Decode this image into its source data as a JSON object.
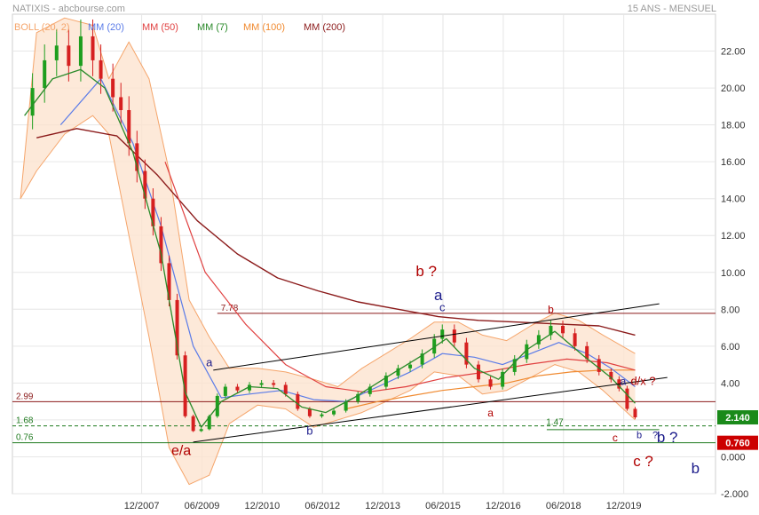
{
  "header": {
    "title": "NATIXIS - abcbourse.com",
    "period": "15 ANS - MENSUEL"
  },
  "legend": [
    {
      "label": "BOLL (20, 2)",
      "color": "#f5a56b"
    },
    {
      "label": "MM (20)",
      "color": "#5a7be8"
    },
    {
      "label": "MM (50)",
      "color": "#e04040"
    },
    {
      "label": "MM (7)",
      "color": "#2a8a2a"
    },
    {
      "label": "MM (100)",
      "color": "#f08a30"
    },
    {
      "label": "MM (200)",
      "color": "#8b1a1a"
    }
  ],
  "chart_data": {
    "type": "candlestick",
    "y_axis": {
      "min": -2,
      "max": 24,
      "ticks": [
        "22.00",
        "20.00",
        "18.00",
        "16.00",
        "14.00",
        "12.00",
        "10.00",
        "8.00",
        "6.00",
        "4.00",
        "2.00",
        "0.000",
        "-2.000"
      ]
    },
    "x_axis": {
      "ticks": [
        "12/2007",
        "06/2009",
        "12/2010",
        "06/2012",
        "12/2013",
        "06/2015",
        "12/2016",
        "06/2018",
        "12/2019"
      ]
    },
    "grid": true,
    "price_series": [
      [
        2004.9,
        18.5
      ],
      [
        2005.2,
        20.0
      ],
      [
        2005.5,
        21.5
      ],
      [
        2005.8,
        22.3
      ],
      [
        2006.1,
        21.2
      ],
      [
        2006.4,
        22.8
      ],
      [
        2006.7,
        21.5
      ],
      [
        2006.9,
        20.5
      ],
      [
        2007.2,
        19.5
      ],
      [
        2007.4,
        18.8
      ],
      [
        2007.6,
        17.0
      ],
      [
        2007.8,
        15.5
      ],
      [
        2008.0,
        14.0
      ],
      [
        2008.2,
        12.5
      ],
      [
        2008.4,
        10.5
      ],
      [
        2008.6,
        8.5
      ],
      [
        2008.8,
        5.5
      ],
      [
        2009.0,
        2.2
      ],
      [
        2009.2,
        1.4
      ],
      [
        2009.4,
        1.5
      ],
      [
        2009.6,
        2.2
      ],
      [
        2009.8,
        3.3
      ],
      [
        2010.0,
        3.8
      ],
      [
        2010.3,
        3.6
      ],
      [
        2010.6,
        3.9
      ],
      [
        2010.9,
        4.0
      ],
      [
        2011.2,
        3.9
      ],
      [
        2011.5,
        3.4
      ],
      [
        2011.8,
        2.6
      ],
      [
        2012.1,
        2.2
      ],
      [
        2012.4,
        2.3
      ],
      [
        2012.7,
        2.5
      ],
      [
        2013.0,
        3.0
      ],
      [
        2013.3,
        3.4
      ],
      [
        2013.6,
        3.8
      ],
      [
        2014.0,
        4.4
      ],
      [
        2014.3,
        4.8
      ],
      [
        2014.6,
        5.0
      ],
      [
        2014.9,
        5.6
      ],
      [
        2015.2,
        6.4
      ],
      [
        2015.4,
        6.9
      ],
      [
        2015.7,
        6.2
      ],
      [
        2016.0,
        5.0
      ],
      [
        2016.3,
        4.2
      ],
      [
        2016.6,
        3.8
      ],
      [
        2016.9,
        4.6
      ],
      [
        2017.2,
        5.3
      ],
      [
        2017.5,
        6.1
      ],
      [
        2017.8,
        6.6
      ],
      [
        2018.1,
        7.1
      ],
      [
        2018.4,
        6.7
      ],
      [
        2018.7,
        6.0
      ],
      [
        2019.0,
        5.3
      ],
      [
        2019.3,
        4.6
      ],
      [
        2019.6,
        4.2
      ],
      [
        2019.8,
        3.7
      ],
      [
        2020.0,
        2.6
      ],
      [
        2020.2,
        2.14
      ]
    ],
    "mm7": [
      [
        2005.0,
        18.5
      ],
      [
        2005.7,
        20.5
      ],
      [
        2006.4,
        21.0
      ],
      [
        2007.0,
        20.0
      ],
      [
        2007.7,
        16.5
      ],
      [
        2008.4,
        11.0
      ],
      [
        2009.0,
        3.5
      ],
      [
        2009.4,
        1.6
      ],
      [
        2009.9,
        3.0
      ],
      [
        2010.6,
        3.8
      ],
      [
        2011.3,
        3.7
      ],
      [
        2011.9,
        2.7
      ],
      [
        2012.5,
        2.4
      ],
      [
        2013.2,
        3.2
      ],
      [
        2014.0,
        4.3
      ],
      [
        2014.9,
        5.5
      ],
      [
        2015.5,
        6.4
      ],
      [
        2016.2,
        4.8
      ],
      [
        2016.8,
        4.2
      ],
      [
        2017.5,
        5.8
      ],
      [
        2018.2,
        6.8
      ],
      [
        2018.9,
        5.5
      ],
      [
        2019.6,
        4.3
      ],
      [
        2020.2,
        2.9
      ]
    ],
    "mm20": [
      [
        2005.9,
        18.0
      ],
      [
        2006.9,
        20.5
      ],
      [
        2007.7,
        17.0
      ],
      [
        2008.4,
        12.5
      ],
      [
        2009.2,
        6.0
      ],
      [
        2009.9,
        3.2
      ],
      [
        2010.6,
        3.4
      ],
      [
        2011.4,
        3.6
      ],
      [
        2012.2,
        3.1
      ],
      [
        2013.0,
        3.0
      ],
      [
        2013.8,
        3.8
      ],
      [
        2014.6,
        4.6
      ],
      [
        2015.4,
        5.6
      ],
      [
        2016.2,
        5.4
      ],
      [
        2016.9,
        5.0
      ],
      [
        2017.6,
        5.6
      ],
      [
        2018.3,
        6.2
      ],
      [
        2019.0,
        5.6
      ],
      [
        2019.6,
        4.8
      ],
      [
        2020.2,
        3.8
      ]
    ],
    "mm50": [
      [
        2008.5,
        16.0
      ],
      [
        2009.5,
        10.0
      ],
      [
        2010.5,
        7.2
      ],
      [
        2011.5,
        5.0
      ],
      [
        2012.5,
        3.8
      ],
      [
        2013.5,
        3.5
      ],
      [
        2014.5,
        3.8
      ],
      [
        2015.5,
        4.3
      ],
      [
        2016.5,
        4.6
      ],
      [
        2017.5,
        5.0
      ],
      [
        2018.5,
        5.3
      ],
      [
        2019.5,
        5.1
      ],
      [
        2020.2,
        4.7
      ]
    ],
    "mm100": [
      [
        2013.0,
        2.6
      ],
      [
        2013.8,
        3.0
      ],
      [
        2014.6,
        3.3
      ],
      [
        2015.4,
        3.6
      ],
      [
        2016.2,
        3.8
      ],
      [
        2017.0,
        4.0
      ],
      [
        2017.8,
        4.4
      ],
      [
        2018.6,
        4.6
      ],
      [
        2019.4,
        4.7
      ],
      [
        2020.2,
        4.7
      ]
    ],
    "mm200": [
      [
        2005.3,
        17.3
      ],
      [
        2006.3,
        17.8
      ],
      [
        2007.3,
        17.4
      ],
      [
        2008.3,
        15.3
      ],
      [
        2009.3,
        12.8
      ],
      [
        2010.3,
        11.0
      ],
      [
        2011.3,
        9.7
      ],
      [
        2012.3,
        9.0
      ],
      [
        2013.3,
        8.4
      ],
      [
        2014.3,
        8.0
      ],
      [
        2015.3,
        7.6
      ],
      [
        2016.3,
        7.4
      ],
      [
        2017.3,
        7.3
      ],
      [
        2018.3,
        7.2
      ],
      [
        2019.3,
        7.1
      ],
      [
        2020.2,
        6.6
      ]
    ],
    "boll_upper": [
      [
        2004.9,
        14.0
      ],
      [
        2005.3,
        23.0
      ],
      [
        2006.0,
        23.8
      ],
      [
        2006.7,
        23.4
      ],
      [
        2007.1,
        20.5
      ],
      [
        2007.6,
        22.5
      ],
      [
        2008.1,
        20.5
      ],
      [
        2008.6,
        15.5
      ],
      [
        2009.1,
        8.5
      ],
      [
        2009.6,
        6.5
      ],
      [
        2010.1,
        4.8
      ],
      [
        2010.8,
        4.8
      ],
      [
        2011.5,
        4.6
      ],
      [
        2012.2,
        4.2
      ],
      [
        2012.8,
        3.8
      ],
      [
        2013.4,
        4.8
      ],
      [
        2014.0,
        5.6
      ],
      [
        2014.6,
        6.4
      ],
      [
        2015.2,
        7.3
      ],
      [
        2015.8,
        7.3
      ],
      [
        2016.4,
        6.6
      ],
      [
        2017.0,
        6.3
      ],
      [
        2017.6,
        7.1
      ],
      [
        2018.2,
        7.8
      ],
      [
        2018.8,
        7.4
      ],
      [
        2019.4,
        6.6
      ],
      [
        2020.2,
        5.6
      ]
    ],
    "boll_lower": [
      [
        2004.9,
        14.0
      ],
      [
        2005.3,
        15.5
      ],
      [
        2006.0,
        17.5
      ],
      [
        2006.7,
        18.5
      ],
      [
        2007.1,
        17.5
      ],
      [
        2007.6,
        12.0
      ],
      [
        2008.1,
        6.5
      ],
      [
        2008.6,
        0.5
      ],
      [
        2009.1,
        -1.5
      ],
      [
        2009.6,
        -1.0
      ],
      [
        2010.1,
        1.8
      ],
      [
        2010.8,
        2.8
      ],
      [
        2011.5,
        2.6
      ],
      [
        2012.2,
        1.6
      ],
      [
        2012.8,
        2.0
      ],
      [
        2013.4,
        2.4
      ],
      [
        2014.0,
        3.0
      ],
      [
        2014.6,
        3.6
      ],
      [
        2015.2,
        4.6
      ],
      [
        2015.8,
        4.4
      ],
      [
        2016.4,
        3.4
      ],
      [
        2017.0,
        3.6
      ],
      [
        2017.6,
        4.3
      ],
      [
        2018.2,
        5.0
      ],
      [
        2018.8,
        4.6
      ],
      [
        2019.4,
        3.6
      ],
      [
        2020.2,
        2.0
      ]
    ],
    "levels": [
      {
        "value": 7.78,
        "label": "7.78",
        "color": "#8b1a1a"
      },
      {
        "value": 2.99,
        "label": "2.99",
        "color": "#8b1a1a"
      },
      {
        "value": 1.68,
        "label": "1.68",
        "color": "#1f7a1f",
        "dashed": true
      },
      {
        "value": 0.76,
        "label": "0.76",
        "color": "#1f7a1f"
      },
      {
        "value": 1.47,
        "label": "1.47",
        "color": "#1f7a1f"
      }
    ],
    "price_tags": [
      {
        "value": 2.14,
        "label": "2.140",
        "bg": "#1a8a1a"
      },
      {
        "value": 0.76,
        "label": "0.760",
        "bg": "#cc0000"
      }
    ],
    "annotations": [
      {
        "text": "a",
        "x": 2009.6,
        "y": 4.9,
        "color": "#1a1a8a",
        "size": 13
      },
      {
        "text": "e/a",
        "x": 2008.9,
        "y": 0.1,
        "color": "#b00000",
        "size": 16
      },
      {
        "text": "b",
        "x": 2012.1,
        "y": 1.2,
        "color": "#1a1a8a",
        "size": 13
      },
      {
        "text": "b ?",
        "x": 2015.0,
        "y": 9.8,
        "color": "#b00000",
        "size": 17
      },
      {
        "text": "a",
        "x": 2015.3,
        "y": 8.5,
        "color": "#1a1a8a",
        "size": 17
      },
      {
        "text": "c",
        "x": 2015.4,
        "y": 7.9,
        "color": "#1a1a8a",
        "size": 13
      },
      {
        "text": "a",
        "x": 2016.6,
        "y": 2.2,
        "color": "#b00000",
        "size": 12
      },
      {
        "text": "b",
        "x": 2018.1,
        "y": 7.8,
        "color": "#b00000",
        "size": 12
      },
      {
        "text": "1.47",
        "x": 2018.2,
        "y": 1.72,
        "color": "#1f7a1f",
        "size": 10
      },
      {
        "text": "a",
        "x": 2019.9,
        "y": 3.9,
        "color": "#1a1a8a",
        "size": 12
      },
      {
        "text": "d/x ?",
        "x": 2020.4,
        "y": 3.9,
        "color": "#b00000",
        "size": 13
      },
      {
        "text": "b",
        "x": 2020.3,
        "y": 1.0,
        "color": "#1a1a8a",
        "size": 11
      },
      {
        "text": "?",
        "x": 2020.7,
        "y": 1.0,
        "color": "#1a1a8a",
        "size": 11
      },
      {
        "text": "c",
        "x": 2019.7,
        "y": 0.85,
        "color": "#b00000",
        "size": 12
      },
      {
        "text": "b ?",
        "x": 2021.0,
        "y": 0.8,
        "color": "#1a1a8a",
        "size": 17
      },
      {
        "text": "c ?",
        "x": 2020.4,
        "y": -0.5,
        "color": "#b00000",
        "size": 17
      },
      {
        "text": "b",
        "x": 2021.7,
        "y": -0.9,
        "color": "#1a1a8a",
        "size": 17
      }
    ],
    "trendlines": [
      {
        "from": [
          2009.2,
          0.8
        ],
        "to": [
          2021.0,
          4.3
        ],
        "color": "#000000"
      },
      {
        "from": [
          2009.7,
          4.7
        ],
        "to": [
          2020.8,
          8.3
        ],
        "color": "#000000"
      }
    ]
  }
}
